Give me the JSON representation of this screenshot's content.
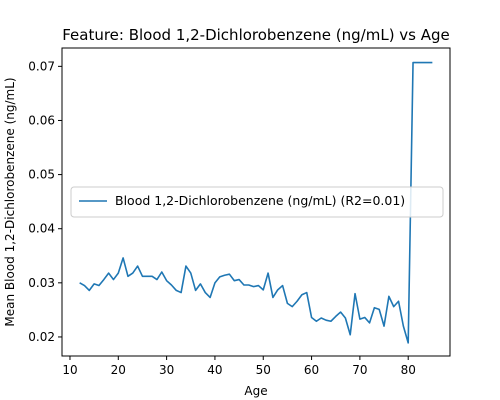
{
  "chart_data": {
    "type": "line",
    "title": "Feature: Blood 1,2-Dichlorobenzene (ng/mL) vs Age",
    "xlabel": "Age",
    "ylabel": "Mean Blood 1,2-Dichlorobenzene (ng/mL)",
    "xlim": [
      8.35,
      88.65
    ],
    "ylim": [
      0.01648,
      0.07339
    ],
    "xticks": [
      10,
      20,
      30,
      40,
      50,
      60,
      70,
      80
    ],
    "yticks": [
      0.02,
      0.03,
      0.04,
      0.05,
      0.06,
      0.07
    ],
    "ytick_labels": [
      "0.02",
      "0.03",
      "0.04",
      "0.05",
      "0.06",
      "0.07"
    ],
    "grid": false,
    "legend": {
      "placement": "center-left"
    },
    "colors": {
      "series": "#1f77b4"
    },
    "series": [
      {
        "name": "Blood 1,2-Dichlorobenzene (ng/mL) (R2=0.01)",
        "x": [
          12,
          13,
          14,
          15,
          16,
          17,
          18,
          19,
          20,
          21,
          22,
          23,
          24,
          25,
          26,
          27,
          28,
          29,
          30,
          31,
          32,
          33,
          34,
          35,
          36,
          37,
          38,
          39,
          40,
          41,
          42,
          43,
          44,
          45,
          46,
          47,
          48,
          49,
          50,
          51,
          52,
          53,
          54,
          55,
          56,
          57,
          58,
          59,
          60,
          61,
          62,
          63,
          64,
          65,
          66,
          67,
          68,
          69,
          70,
          71,
          72,
          73,
          74,
          75,
          76,
          77,
          78,
          79,
          80,
          81,
          82,
          83,
          84,
          85
        ],
        "y": [
          0.03,
          0.0295,
          0.0286,
          0.0298,
          0.0295,
          0.0306,
          0.0318,
          0.0306,
          0.0318,
          0.0346,
          0.0312,
          0.0318,
          0.0331,
          0.0312,
          0.0312,
          0.0312,
          0.0306,
          0.032,
          0.0304,
          0.0296,
          0.0286,
          0.0282,
          0.0331,
          0.0318,
          0.0286,
          0.0298,
          0.0282,
          0.0273,
          0.03,
          0.0311,
          0.0314,
          0.0316,
          0.0304,
          0.0306,
          0.0296,
          0.0296,
          0.0293,
          0.0295,
          0.0287,
          0.0318,
          0.0273,
          0.0287,
          0.0295,
          0.0262,
          0.0256,
          0.0266,
          0.0278,
          0.0282,
          0.0236,
          0.0229,
          0.0235,
          0.0231,
          0.0229,
          0.0238,
          0.0246,
          0.0235,
          0.0204,
          0.028,
          0.0233,
          0.0236,
          0.0226,
          0.0254,
          0.0251,
          0.022,
          0.0275,
          0.0256,
          0.0266,
          0.022,
          0.0189,
          0.0707,
          0.0707,
          0.0707,
          0.0707,
          0.0707
        ]
      }
    ]
  }
}
